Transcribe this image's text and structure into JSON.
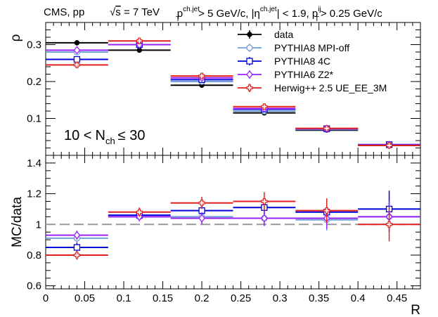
{
  "header": {
    "left": "CMS, pp",
    "sqrt_s": "s",
    "sqrt_s_value": "= 7 TeV",
    "cuts": {
      "p": "p",
      "sup1": "ch.jet",
      "sub1": "T",
      "cut1": "> 5 GeV/c, |η",
      "sup2": "ch.jet",
      "cut2": "| < 1.9, p",
      "sup3": "ij",
      "sub3": "T",
      "cut3": "> 0.25 GeV/c"
    }
  },
  "annotation": {
    "prefix": "10 <",
    "var": "N",
    "sub": "ch",
    "suffix": "≤ 30"
  },
  "chart_data": [
    {
      "type": "scatter",
      "panel": "top",
      "ylabel": "ρ",
      "xlim": [
        0,
        0.48
      ],
      "ylim": [
        0,
        0.36
      ],
      "yticks": [
        0.1,
        0.2,
        0.3
      ],
      "ytick_labels": [
        "0.1",
        "0.2",
        "0.3"
      ],
      "bins": [
        [
          0,
          0.08
        ],
        [
          0.08,
          0.16
        ],
        [
          0.16,
          0.24
        ],
        [
          0.24,
          0.32
        ],
        [
          0.32,
          0.4
        ],
        [
          0.4,
          0.48
        ]
      ],
      "x": [
        0.04,
        0.12,
        0.2,
        0.28,
        0.36,
        0.44
      ],
      "series": [
        {
          "name": "data",
          "color": "#000000",
          "marker": "dot",
          "values": [
            0.305,
            0.285,
            0.19,
            0.115,
            0.068,
            0.027
          ],
          "err": [
            0.007,
            0.007,
            0.005,
            0.004,
            0.003,
            0.003
          ]
        },
        {
          "name": "PYTHIA8 MPI-off",
          "color": "#6fa0d8",
          "marker": "open-circle",
          "values": [
            0.28,
            0.3,
            0.2,
            0.12,
            0.07,
            0.028
          ],
          "err": [
            0.003,
            0.003,
            0.003,
            0.002,
            0.002,
            0.002
          ]
        },
        {
          "name": "PYTHIA8 4C",
          "color": "#0000dd",
          "marker": "open-square",
          "values": [
            0.26,
            0.3,
            0.205,
            0.125,
            0.072,
            0.029
          ],
          "err": [
            0.003,
            0.003,
            0.003,
            0.002,
            0.002,
            0.002
          ]
        },
        {
          "name": "PYTHIA6 Z2*",
          "color": "#9a20ff",
          "marker": "open-diamond",
          "values": [
            0.285,
            0.3,
            0.21,
            0.127,
            0.072,
            0.028
          ],
          "err": [
            0.003,
            0.003,
            0.003,
            0.002,
            0.002,
            0.002
          ]
        },
        {
          "name": "Herwig++ 2.5  UE_EE_3M",
          "color": "#e3201b",
          "marker": "open-cross",
          "values": [
            0.245,
            0.31,
            0.215,
            0.132,
            0.073,
            0.027
          ],
          "err": [
            0.003,
            0.003,
            0.003,
            0.002,
            0.002,
            0.002
          ]
        }
      ]
    },
    {
      "type": "scatter",
      "panel": "bottom",
      "xlabel": "R",
      "ylabel": "MC/data",
      "xlim": [
        0,
        0.48
      ],
      "ylim": [
        0.58,
        1.45
      ],
      "xticks": [
        0,
        0.05,
        0.1,
        0.15,
        0.2,
        0.25,
        0.3,
        0.35,
        0.4,
        0.45
      ],
      "xtick_labels": [
        "0",
        "0.05",
        "0.1",
        "0.15",
        "0.2",
        "0.25",
        "0.3",
        "0.35",
        "0.4",
        "0.45"
      ],
      "yticks": [
        0.6,
        0.8,
        1.0,
        1.2,
        1.4
      ],
      "ytick_labels": [
        "0.6",
        "0.8",
        "1",
        "1.2",
        "1.4"
      ],
      "reference_line": 1.0,
      "bins": [
        [
          0,
          0.08
        ],
        [
          0.08,
          0.16
        ],
        [
          0.16,
          0.24
        ],
        [
          0.24,
          0.32
        ],
        [
          0.32,
          0.4
        ],
        [
          0.4,
          0.48
        ]
      ],
      "x": [
        0.04,
        0.12,
        0.2,
        0.28,
        0.36,
        0.44
      ],
      "series": [
        {
          "name": "PYTHIA8 MPI-off",
          "color": "#6fa0d8",
          "marker": "open-circle",
          "values": [
            0.91,
            1.05,
            1.05,
            1.04,
            1.03,
            1.05
          ],
          "err": [
            0.03,
            0.03,
            0.04,
            0.05,
            0.07,
            0.1
          ]
        },
        {
          "name": "PYTHIA8 4C",
          "color": "#0000dd",
          "marker": "open-square",
          "values": [
            0.85,
            1.06,
            1.09,
            1.11,
            1.08,
            1.1
          ],
          "err": [
            0.03,
            0.03,
            0.04,
            0.05,
            0.07,
            0.12
          ]
        },
        {
          "name": "PYTHIA6 Z2*",
          "color": "#9a20ff",
          "marker": "open-diamond",
          "values": [
            0.93,
            1.05,
            1.04,
            1.04,
            1.04,
            1.05
          ],
          "err": [
            0.03,
            0.03,
            0.04,
            0.05,
            0.07,
            0.1
          ]
        },
        {
          "name": "Herwig++ 2.5  UE_EE_3M",
          "color": "#e3201b",
          "marker": "open-cross",
          "values": [
            0.8,
            1.08,
            1.14,
            1.15,
            1.09,
            1.0
          ],
          "err": [
            0.03,
            0.03,
            0.04,
            0.06,
            0.08,
            0.11
          ]
        }
      ]
    }
  ]
}
